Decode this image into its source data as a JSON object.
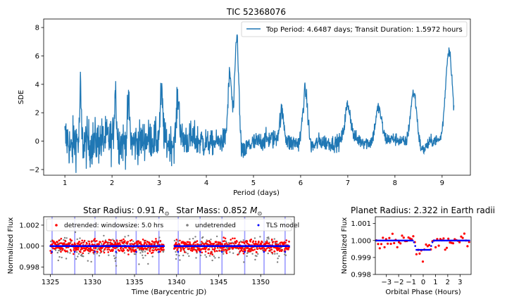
{
  "colors": {
    "periodogram": "#1f77b4",
    "detrended": "#ff0000",
    "undetrended": "#808080",
    "tls_model": "#0000ff",
    "transit_lines": "#8080ff"
  },
  "chart_data": [
    {
      "type": "line",
      "title": "TIC 52368076",
      "xlabel": "Period (days)",
      "ylabel": "SDE",
      "xlim": [
        0.55,
        9.6
      ],
      "ylim": [
        -2.4,
        8.6
      ],
      "xticks": [
        "1",
        "2",
        "3",
        "4",
        "5",
        "6",
        "7",
        "8",
        "9"
      ],
      "yticks": [
        "−2",
        "0",
        "2",
        "4",
        "6",
        "8"
      ],
      "legend_position": "top-right",
      "legend_label": "Top Period: 4.6487 days; Transit Duration: 1.5972 hours",
      "x_range": [
        1.0,
        9.25
      ],
      "peaks": [
        {
          "x": 4.6487,
          "y": 8.15
        },
        {
          "x": 9.15,
          "y": 7.6
        },
        {
          "x": 8.4,
          "y": 4.6
        },
        {
          "x": 6.1,
          "y": 4.2
        },
        {
          "x": 4.5,
          "y": 4.7
        },
        {
          "x": 2.07,
          "y": 3.85
        },
        {
          "x": 3.05,
          "y": 3.5
        },
        {
          "x": 3.4,
          "y": 3.3
        },
        {
          "x": 1.33,
          "y": 3.7
        },
        {
          "x": 2.35,
          "y": 2.9
        },
        {
          "x": 7.0,
          "y": 2.6
        },
        {
          "x": 5.6,
          "y": 2.2
        },
        {
          "x": 7.65,
          "y": 2.6
        }
      ],
      "dips": [
        {
          "x": 4.6487,
          "y": -2.0
        },
        {
          "x": 9.15,
          "y": -1.8
        },
        {
          "x": 8.4,
          "y": -1.8
        },
        {
          "x": 6.1,
          "y": -1.4
        },
        {
          "x": 1.05,
          "y": -1.6
        }
      ]
    },
    {
      "type": "scatter",
      "title_radius_label": "Star Radius: 0.91",
      "title_mass_label": "Star Mass: 0.852",
      "xlabel": "Time (Barycentric JD)",
      "ylabel": "Normalized Flux",
      "xlim": [
        1324.2,
        1354.0
      ],
      "ylim": [
        0.9973,
        1.0028
      ],
      "xticks": [
        "1325",
        "1330",
        "1335",
        "1340",
        "1345",
        "1350"
      ],
      "yticks": [
        "0.998",
        "1.000",
        "1.002"
      ],
      "legend_position": "upper center",
      "legend": [
        "detrended: windowsize: 5.0 hrs",
        "undetrended",
        "TLS model"
      ],
      "data_gap": [
        1338.5,
        1339.7
      ],
      "transit_times": [
        1325.2,
        1327.9,
        1330.3,
        1332.8,
        1335.2,
        1337.9,
        1340.2,
        1342.8,
        1345.4,
        1348.1,
        1350.4,
        1352.9
      ]
    },
    {
      "type": "scatter",
      "title": "Planet Radius: 2.322 in Earth radii",
      "xlabel": "Orbital Phase (Hours)",
      "ylabel": "Normalized Flux",
      "xlim": [
        -3.9,
        3.9
      ],
      "ylim": [
        0.998,
        1.0014
      ],
      "xticks": [
        "−3",
        "−2",
        "−1",
        "0",
        "1",
        "2",
        "3"
      ],
      "yticks": [
        "0.998",
        "0.999",
        "1.000",
        "1.001"
      ],
      "transit_depth": 0.00055,
      "transit_duration_hours": 1.5972
    }
  ]
}
